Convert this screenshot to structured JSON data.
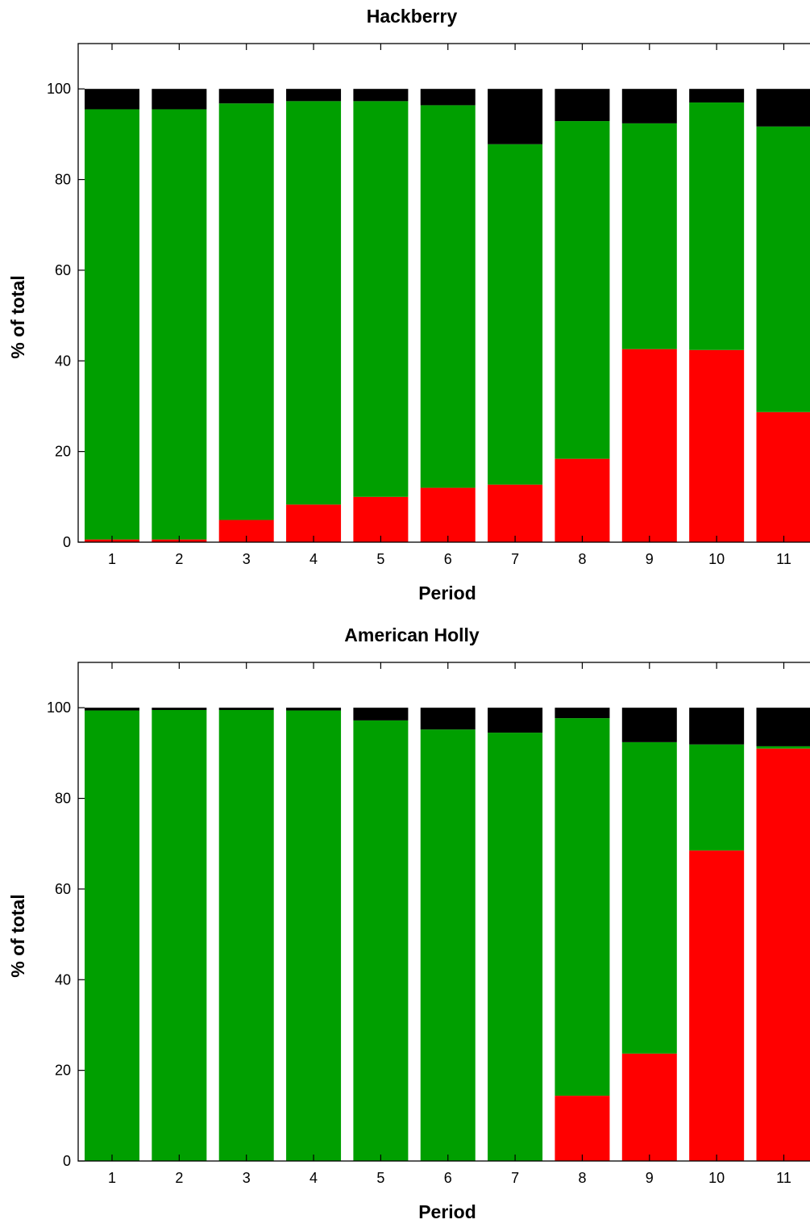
{
  "colors": {
    "lower": "#ff0000",
    "middle": "#009f00",
    "upper": "#000000",
    "frame": "#000000",
    "background": "#ffffff"
  },
  "chart_data": [
    {
      "type": "bar",
      "stacked": true,
      "title": "Hackberry",
      "xlabel": "Period",
      "ylabel": "% of total",
      "ylim": [
        0,
        110
      ],
      "yticks": [
        0,
        20,
        40,
        60,
        80,
        100
      ],
      "categories": [
        "1",
        "2",
        "3",
        "4",
        "5",
        "6",
        "7",
        "8",
        "9",
        "10",
        "11"
      ],
      "series": [
        {
          "color": "#ff0000",
          "values": [
            0.6,
            0.6,
            4.9,
            8.3,
            10.0,
            12.0,
            12.7,
            18.4,
            42.6,
            42.4,
            28.7
          ]
        },
        {
          "color": "#009f00",
          "values": [
            94.9,
            94.9,
            91.9,
            89.0,
            87.3,
            84.4,
            75.1,
            74.5,
            49.8,
            54.6,
            63.0
          ]
        },
        {
          "color": "#000000",
          "values": [
            4.5,
            4.5,
            3.2,
            2.7,
            2.7,
            3.6,
            12.2,
            7.1,
            7.6,
            3.0,
            8.3
          ]
        }
      ],
      "grid": false,
      "legend": "none"
    },
    {
      "type": "bar",
      "stacked": true,
      "title": "American Holly",
      "xlabel": "Period",
      "ylabel": "% of total",
      "ylim": [
        0,
        110
      ],
      "yticks": [
        0,
        20,
        40,
        60,
        80,
        100
      ],
      "categories": [
        "1",
        "2",
        "3",
        "4",
        "5",
        "6",
        "7",
        "8",
        "9",
        "10",
        "11"
      ],
      "series": [
        {
          "color": "#ff0000",
          "values": [
            0,
            0,
            0,
            0,
            0,
            0,
            0,
            14.4,
            23.7,
            68.5,
            91.0
          ]
        },
        {
          "color": "#009f00",
          "values": [
            99.4,
            99.5,
            99.5,
            99.4,
            97.2,
            95.2,
            94.5,
            83.3,
            68.7,
            23.4,
            0.5
          ]
        },
        {
          "color": "#000000",
          "values": [
            0.6,
            0.5,
            0.5,
            0.6,
            2.8,
            4.8,
            5.5,
            2.3,
            7.6,
            8.1,
            8.5
          ]
        }
      ],
      "grid": false,
      "legend": "none"
    }
  ]
}
